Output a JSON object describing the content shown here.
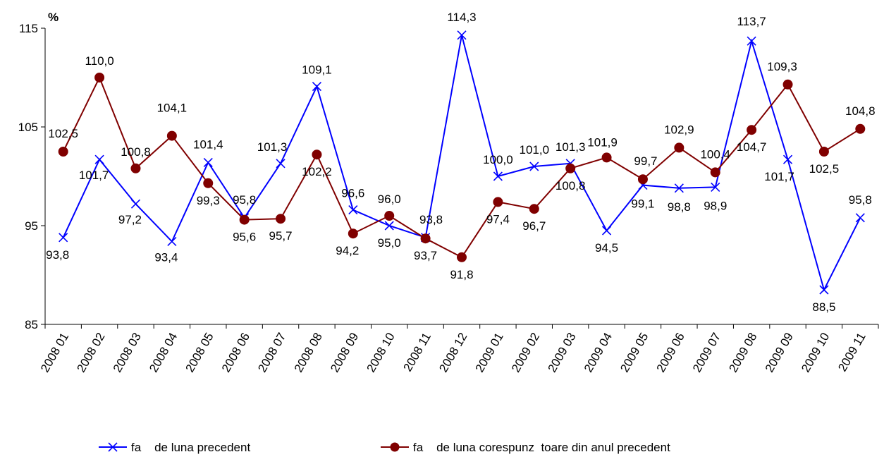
{
  "chart_data": {
    "type": "line",
    "ylabel": "%",
    "ylim": [
      85,
      115
    ],
    "yticks": [
      85,
      95,
      105,
      115
    ],
    "grid": false,
    "legend_position": "bottom",
    "categories": [
      "2008 01",
      "2008 02",
      "2008 03",
      "2008 04",
      "2008 05",
      "2008 06",
      "2008 07",
      "2008 08",
      "2008 09",
      "2008 10",
      "2008 11",
      "2008 12",
      "2009 01",
      "2009 02",
      "2009 03",
      "2009 04",
      "2009 05",
      "2009 06",
      "2009 07",
      "2009 08",
      "2009 09",
      "2009 10",
      "2009 11"
    ],
    "series": [
      {
        "name": "fa    de luna precedent",
        "color": "#0000ff",
        "marker": "x",
        "values": [
          93.8,
          101.7,
          97.2,
          93.4,
          101.4,
          95.8,
          101.3,
          109.1,
          96.6,
          95.0,
          93.8,
          114.3,
          100.0,
          101.0,
          101.3,
          94.5,
          99.1,
          98.8,
          98.9,
          113.7,
          101.7,
          88.5,
          95.8
        ],
        "labels": [
          "93,8",
          "101,7",
          "97,2",
          "93,4",
          "101,4",
          "95,8",
          "101,3",
          "109,1",
          "96,6",
          "95,0",
          "93,8",
          "114,3",
          "100,0",
          "101,0",
          "101,3",
          "94,5",
          "99,1",
          "98,8",
          "98,9",
          "113,7",
          "101,7",
          "88,5",
          "95,8"
        ]
      },
      {
        "name": "fa    de luna corespunz  toare din anul precedent",
        "color": "#800000",
        "marker": "circle",
        "values": [
          102.5,
          110.0,
          100.8,
          104.1,
          99.3,
          95.6,
          95.7,
          102.2,
          94.2,
          96.0,
          93.7,
          91.8,
          97.4,
          96.7,
          100.8,
          101.9,
          99.7,
          102.9,
          100.4,
          104.7,
          109.3,
          102.5,
          104.8
        ],
        "labels": [
          "102,5",
          "110,0",
          "100,8",
          "104,1",
          "99,3",
          "95,6",
          "95,7",
          "102,2",
          "94,2",
          "96,0",
          "93,7",
          "91,8",
          "97,4",
          "96,7",
          "100,8",
          "101,9",
          "99,7",
          "102,9",
          "100,4",
          "104,7",
          "109,3",
          "102,5",
          "104,8"
        ]
      }
    ]
  }
}
